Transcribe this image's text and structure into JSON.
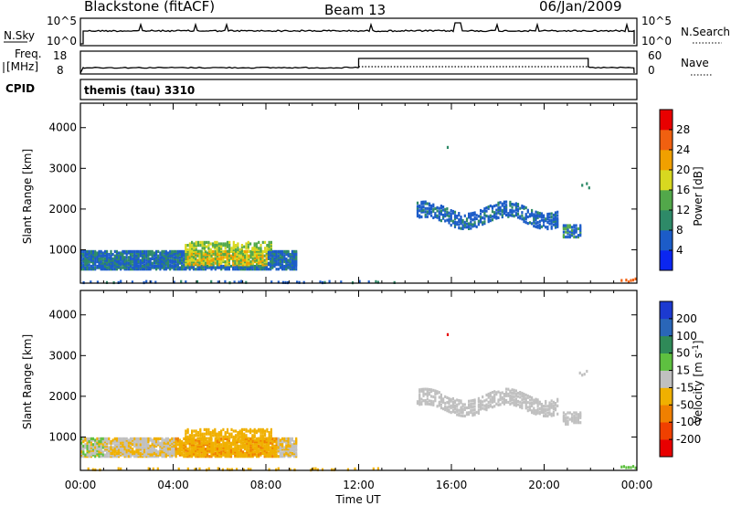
{
  "header": {
    "title": "Blackstone (fitACF)",
    "beam": "Beam 13",
    "date": "06/Jan/2009"
  },
  "top_panels": {
    "nsky_label": "N.Sky",
    "nsky_ticks": [
      "10^5",
      "10^0"
    ],
    "nsearch_label": "N.Search",
    "freq_label_1": "Freq.",
    "freq_label_2": "[MHz]",
    "freq_ticks": [
      "18",
      "8"
    ],
    "nave_label": "Nave",
    "nave_ticks": [
      "60",
      "0"
    ],
    "cpid_label": "CPID",
    "cpid_value": "themis (tau) 3310"
  },
  "chart_data": [
    {
      "type": "heatmap",
      "name": "power",
      "ylabel": "Slant Range [km]",
      "xlabel": "Time UT",
      "x_ticks": [
        "00:00",
        "04:00",
        "08:00",
        "12:00",
        "16:00",
        "20:00",
        "00:00"
      ],
      "y_ticks": [
        "1000",
        "2000",
        "3000",
        "4000"
      ],
      "xlim_hours": [
        0,
        24
      ],
      "ylim_km": [
        180,
        4600
      ],
      "colorbar": {
        "label": "Power [dB]",
        "ticks": [
          "4",
          "8",
          "12",
          "16",
          "20",
          "24",
          "28"
        ],
        "range": [
          0,
          30
        ],
        "colors": [
          "#0b26f0",
          "#1c5cc8",
          "#2e8a68",
          "#52a84a",
          "#d8d820",
          "#f0a000",
          "#f06010",
          "#e80000"
        ]
      },
      "regions": [
        {
          "t": [
            0.0,
            9.3
          ],
          "r": [
            600,
            1000
          ],
          "level": 2,
          "note": "main echo band"
        },
        {
          "t": [
            4.5,
            8.2
          ],
          "r": [
            650,
            1200
          ],
          "level": 5
        },
        {
          "t": [
            5.5,
            7.5
          ],
          "r": [
            700,
            1000
          ],
          "level": 6
        },
        {
          "t": [
            0.0,
            13.5
          ],
          "r": [
            180,
            260
          ],
          "level": 1
        },
        {
          "t": [
            14.5,
            20.6
          ],
          "r": [
            1700,
            2300
          ],
          "level": 1
        },
        {
          "t": [
            20.8,
            21.6
          ],
          "r": [
            1350,
            1650
          ],
          "level": 1
        },
        {
          "t": [
            21.5,
            22.0
          ],
          "r": [
            2500,
            2700
          ],
          "level": 2
        },
        {
          "t": [
            23.3,
            24.0
          ],
          "r": [
            180,
            350
          ],
          "level": 6
        }
      ]
    },
    {
      "type": "heatmap",
      "name": "velocity",
      "ylabel": "Slant Range [km]",
      "xlabel": "Time UT",
      "x_ticks": [
        "00:00",
        "04:00",
        "08:00",
        "12:00",
        "16:00",
        "20:00",
        "00:00"
      ],
      "y_ticks": [
        "1000",
        "2000",
        "3000",
        "4000"
      ],
      "xlim_hours": [
        0,
        24
      ],
      "ylim_km": [
        180,
        4600
      ],
      "colorbar": {
        "label": "Velocity [m s^-1]",
        "ticks": [
          "200",
          "100",
          "50",
          "15",
          "-15",
          "-50",
          "-100",
          "-200"
        ],
        "range": [
          -250,
          250
        ],
        "colors": [
          "#1c3ad0",
          "#2a66b8",
          "#2f8a58",
          "#5ec040",
          "#c0c0c0",
          "#f0b000",
          "#f08000",
          "#f04000",
          "#e80000"
        ]
      },
      "regions": [
        {
          "t": [
            0.0,
            9.3
          ],
          "r": [
            600,
            1000
          ],
          "level": "mixed",
          "note": "grey/orange"
        },
        {
          "t": [
            4.5,
            8.2
          ],
          "r": [
            650,
            1200
          ],
          "level": -50
        },
        {
          "t": [
            14.5,
            20.6
          ],
          "r": [
            1700,
            2300
          ],
          "level": 0
        },
        {
          "t": [
            20.8,
            21.6
          ],
          "r": [
            1350,
            1650
          ],
          "level": 0
        }
      ]
    }
  ],
  "xlabel_bottom": "Time UT",
  "colors": {
    "background": "#ffffff",
    "axes": "#000000"
  }
}
